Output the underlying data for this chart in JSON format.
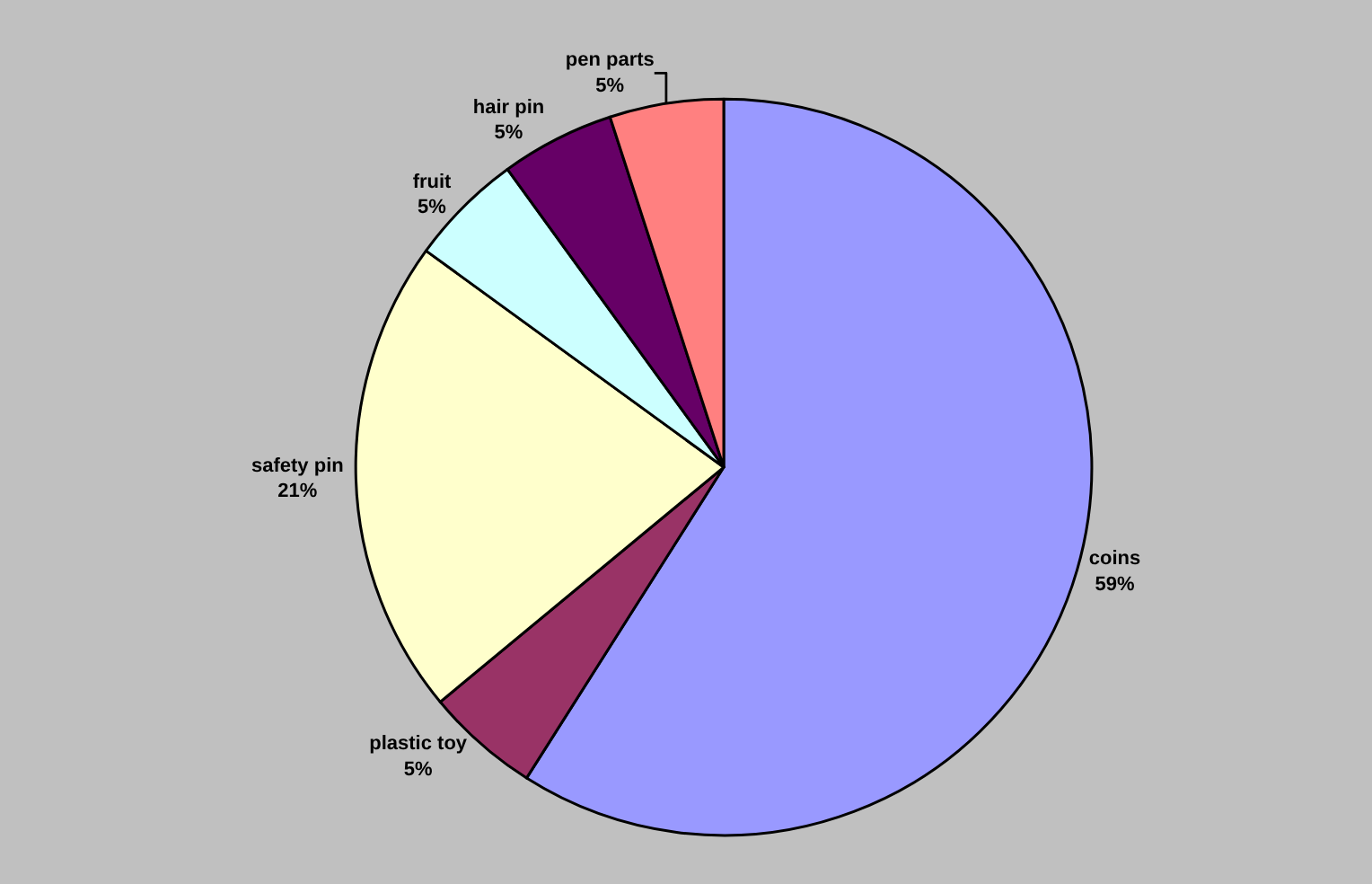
{
  "chart_data": {
    "type": "pie",
    "categories": [
      "coins",
      "plastic toy",
      "safety pin",
      "fruit",
      "hair pin",
      "pen parts"
    ],
    "values": [
      59,
      5,
      21,
      5,
      5,
      5
    ],
    "colors": [
      "#9999ff",
      "#993366",
      "#ffffcc",
      "#ccffff",
      "#660066",
      "#ff8080"
    ],
    "value_labels": [
      "59%",
      "5%",
      "21%",
      "5%",
      "5%",
      "5%"
    ],
    "legend": false
  }
}
